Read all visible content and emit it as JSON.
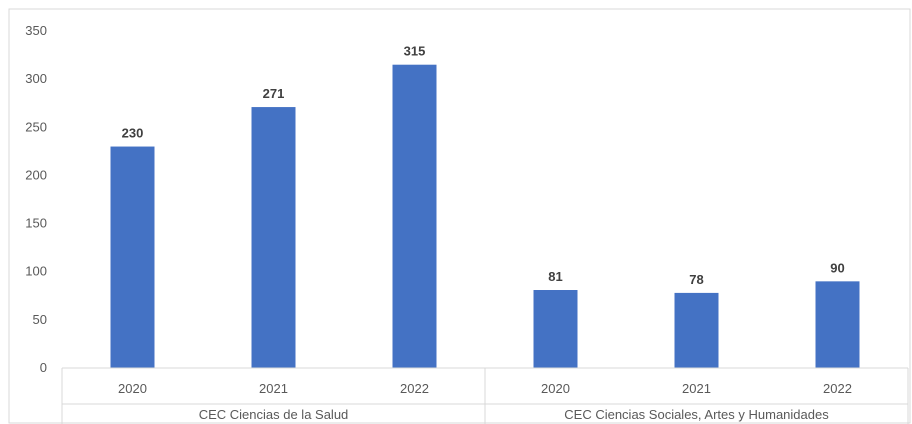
{
  "chart_data": {
    "type": "bar",
    "groups": [
      {
        "label": "CEC Ciencias de la Salud",
        "categories": [
          "2020",
          "2021",
          "2022"
        ],
        "values": [
          230,
          271,
          315
        ]
      },
      {
        "label": "CEC Ciencias Sociales, Artes y Humanidades",
        "categories": [
          "2020",
          "2021",
          "2022"
        ],
        "values": [
          81,
          78,
          90
        ]
      }
    ],
    "yticks": [
      "0",
      "50",
      "100",
      "150",
      "200",
      "250",
      "300",
      "350"
    ],
    "ylim": [
      0,
      350
    ],
    "grid": false,
    "legend": "none",
    "bar_color": "#4472C4"
  }
}
